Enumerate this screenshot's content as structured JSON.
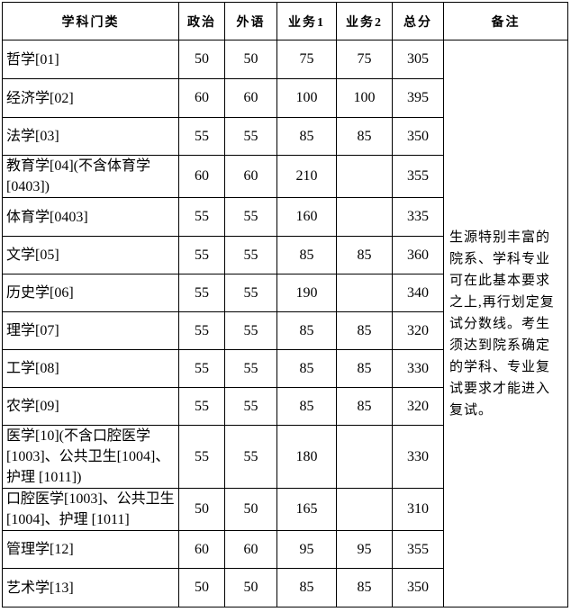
{
  "headers": [
    "学科门类",
    "政治",
    "外语",
    "业务1",
    "业务2",
    "总分",
    "备注"
  ],
  "rows": [
    {
      "name": "哲学[01]",
      "politics": "50",
      "language": "50",
      "subject1": "75",
      "subject2": "75",
      "total": "305"
    },
    {
      "name": "经济学[02]",
      "politics": "60",
      "language": "60",
      "subject1": "100",
      "subject2": "100",
      "total": "395"
    },
    {
      "name": "法学[03]",
      "politics": "55",
      "language": "55",
      "subject1": "85",
      "subject2": "85",
      "total": "350"
    },
    {
      "name": "教育学[04](不含体育学[0403])",
      "politics": "60",
      "language": "60",
      "subject1": "210",
      "subject2": "",
      "total": "355"
    },
    {
      "name": "体育学[0403]",
      "politics": "55",
      "language": "55",
      "subject1": "160",
      "subject2": "",
      "total": "335"
    },
    {
      "name": "文学[05]",
      "politics": "55",
      "language": "55",
      "subject1": "85",
      "subject2": "85",
      "total": "360"
    },
    {
      "name": "历史学[06]",
      "politics": "55",
      "language": "55",
      "subject1": "190",
      "subject2": "",
      "total": "340"
    },
    {
      "name": "理学[07]",
      "politics": "55",
      "language": "55",
      "subject1": "85",
      "subject2": "85",
      "total": "320"
    },
    {
      "name": "工学[08]",
      "politics": "55",
      "language": "55",
      "subject1": "85",
      "subject2": "85",
      "total": "330"
    },
    {
      "name": "农学[09]",
      "politics": "55",
      "language": "55",
      "subject1": "85",
      "subject2": "85",
      "total": "320"
    },
    {
      "name": "医学[10](不含口腔医学[1003]、公共卫生[1004]、护理 [1011])",
      "politics": "55",
      "language": "55",
      "subject1": "180",
      "subject2": "",
      "total": "330"
    },
    {
      "name": "口腔医学[1003]、公共卫生 [1004]、护理 [1011]",
      "politics": "50",
      "language": "50",
      "subject1": "165",
      "subject2": "",
      "total": "310"
    },
    {
      "name": "管理学[12]",
      "politics": "60",
      "language": "60",
      "subject1": "95",
      "subject2": "95",
      "total": "355"
    },
    {
      "name": "艺术学[13]",
      "politics": "50",
      "language": "50",
      "subject1": "85",
      "subject2": "85",
      "total": "350"
    }
  ],
  "remark": "生源特别丰富的院系、学科专业可在此基本要求之上,再行划定复试分数线。考生须达到院系确定的学科、专业复试要求才能进入复试。"
}
